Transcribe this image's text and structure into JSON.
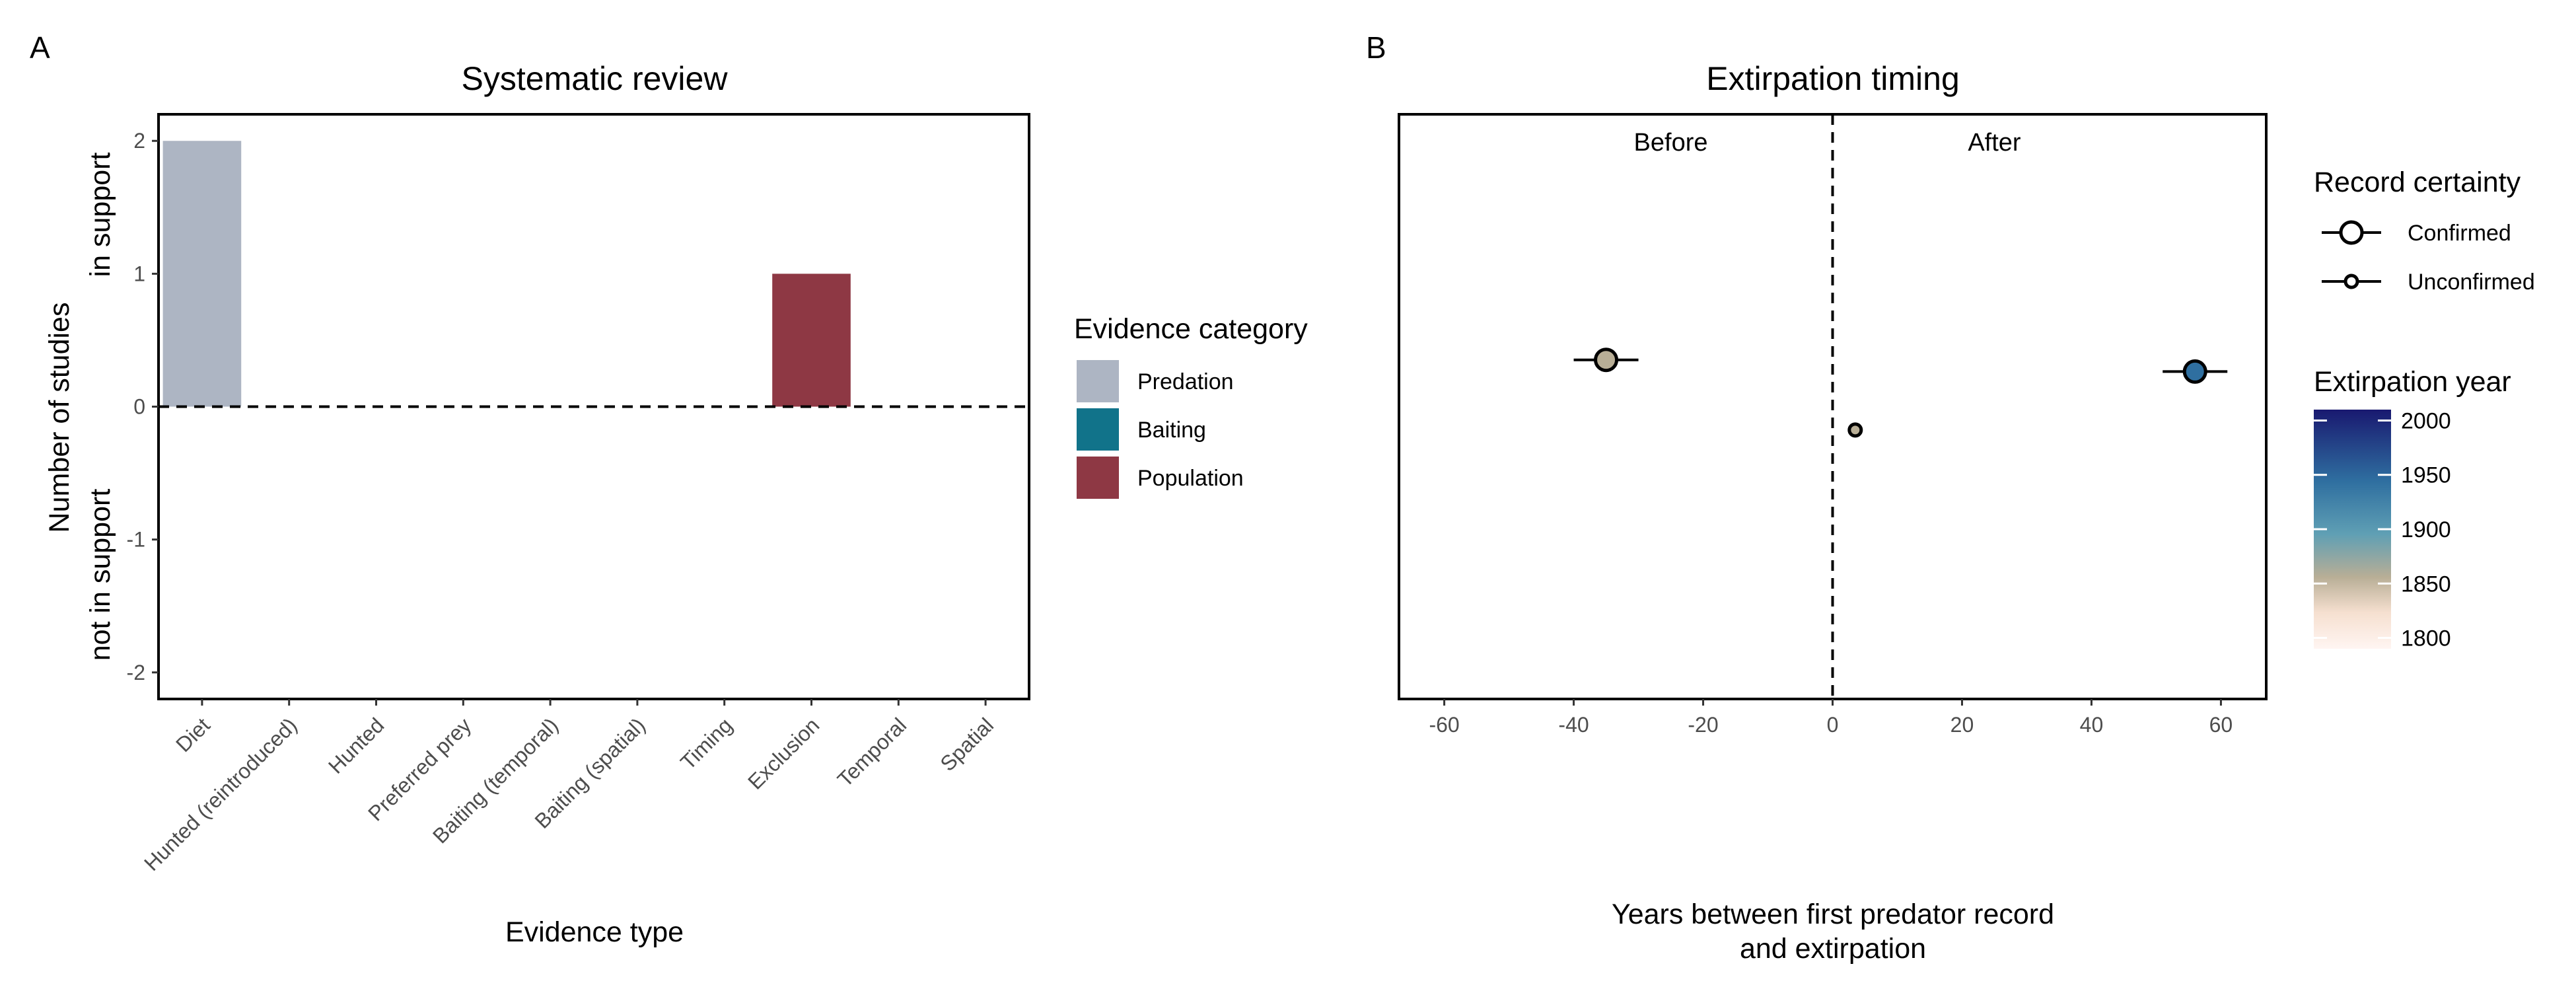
{
  "panels": {
    "a": {
      "tag": "A"
    },
    "b": {
      "tag": "B"
    }
  },
  "chart_data": [
    {
      "type": "bar",
      "title": "Systematic review",
      "xlabel": "Evidence type",
      "ylabel_lines": [
        "Number of studies",
        "in support",
        "not in support"
      ],
      "categories": [
        "Diet",
        "Hunted (reintroduced)",
        "Hunted",
        "Preferred prey",
        "Baiting (temporal)",
        "Baiting (spatial)",
        "Timing",
        "Exclusion",
        "Temporal",
        "Spatial"
      ],
      "values": [
        2,
        0,
        0,
        0,
        0,
        0,
        0,
        1,
        0,
        0
      ],
      "bar_category": [
        "Predation",
        null,
        null,
        null,
        null,
        null,
        null,
        "Population",
        null,
        null
      ],
      "ylim": [
        -2.2,
        2.2
      ],
      "yticks": [
        -2,
        -1,
        0,
        1,
        2
      ],
      "ytick_labels": [
        "-2",
        "-1",
        "0",
        "1",
        "2"
      ],
      "reference_line": {
        "y": 0,
        "style": "dashed"
      },
      "grid": false,
      "legend": {
        "title": "Evidence category",
        "position": "right",
        "entries": [
          {
            "label": "Predation",
            "color": "#adb5c3"
          },
          {
            "label": "Baiting",
            "color": "#11738a"
          },
          {
            "label": "Population",
            "color": "#8e3844"
          }
        ]
      }
    },
    {
      "type": "scatter",
      "title": "Extirpation timing",
      "xlabel_lines": [
        "Years between first predator record",
        "and extirpation"
      ],
      "xlim": [
        -67,
        67
      ],
      "xticks": [
        -60,
        -40,
        -20,
        0,
        20,
        40,
        60
      ],
      "xtick_labels": [
        "-60",
        "-40",
        "-20",
        "0",
        "20",
        "40",
        "60"
      ],
      "reference_line": {
        "x": 0,
        "style": "dashed"
      },
      "region_labels": [
        "Before",
        "After"
      ],
      "grid": false,
      "points": [
        {
          "x": -35,
          "xmin": -40,
          "xmax": -30,
          "row": 0.42,
          "certainty": "Confirmed",
          "color": "#b8ae96"
        },
        {
          "x": 3.5,
          "xmin": 3.5,
          "xmax": 3.5,
          "row": 0.54,
          "certainty": "Unconfirmed",
          "color": "#b8ae96"
        },
        {
          "x": 56,
          "xmin": 51,
          "xmax": 61,
          "row": 0.44,
          "certainty": "Confirmed",
          "color": "#2f6fa0"
        }
      ],
      "legend_certainty": {
        "title": "Record certainty",
        "entries": [
          "Confirmed",
          "Unconfirmed"
        ]
      },
      "legend_year": {
        "title": "Extirpation year",
        "ticks": [
          2000,
          1950,
          1900,
          1850,
          1800
        ],
        "tick_labels": [
          "2000",
          "1950",
          "1900",
          "1850",
          "1800"
        ],
        "range": [
          1790,
          2010
        ],
        "colors": [
          "#191970",
          "#2f6fa0",
          "#b8ae96",
          "#fde8dc",
          "#fff5f2"
        ]
      }
    }
  ]
}
